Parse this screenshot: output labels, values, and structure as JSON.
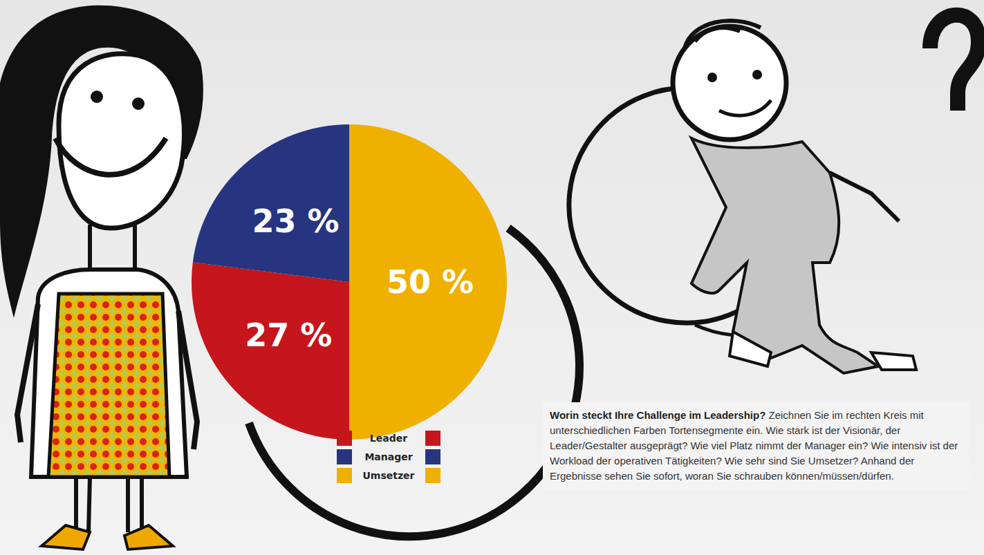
{
  "chart_data": {
    "type": "pie",
    "categories": [
      "Leader",
      "Manager",
      "Umsetzer"
    ],
    "values": [
      27,
      23,
      50
    ],
    "value_labels": [
      "27 %",
      "23 %",
      "50 %"
    ],
    "colors": [
      "#c4161c",
      "#27347f",
      "#efb000"
    ],
    "data_labels": true,
    "legend": "bottom",
    "annotations": [
      "Worin steckt Ihre Challenge im Leadership?",
      "Zeichnen Sie im rechten Kreis mit unterschiedlichen Farben Tortensegmente ein. Wie stark ist der Visionär, der Leader/Gestalter ausgeprägt? Wie viel Platz nimmt der Manager ein? Wie intensiv ist der Workload der operativen Tätigkeiten? Wie sehr sind Sie Umsetzer? Anhand der Ergebnisse sehen Sie sofort, woran Sie schrauben können/müssen/dürfen."
    ]
  }
}
